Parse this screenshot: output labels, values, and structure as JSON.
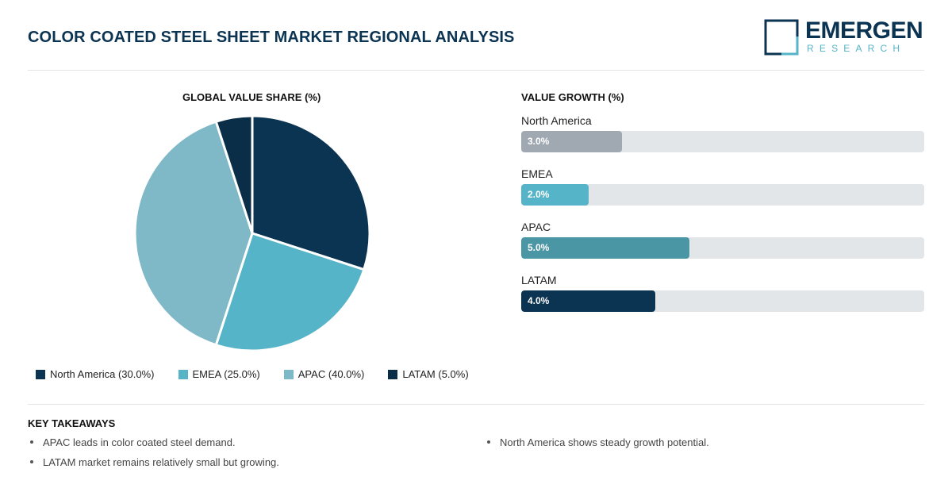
{
  "header": {
    "title": "COLOR COATED STEEL SHEET MARKET REGIONAL ANALYSIS",
    "logo_main": "EMERGEN",
    "logo_sub": "RESEARCH"
  },
  "chart_data": [
    {
      "type": "pie",
      "title": "GLOBAL VALUE SHARE (%)",
      "unit": "%",
      "categories": [
        "North America",
        "EMEA",
        "APAC",
        "LATAM"
      ],
      "values": [
        30.0,
        25.0,
        40.0,
        5.0
      ],
      "colors": [
        "#0b3352",
        "#56b4c8",
        "#7fb8c6",
        "#0a2e48"
      ],
      "legend": [
        {
          "label": "North America (30.0%)",
          "color": "#0b3352"
        },
        {
          "label": "EMEA (25.0%)",
          "color": "#56b4c8"
        },
        {
          "label": "APAC (40.0%)",
          "color": "#7fb8c6"
        },
        {
          "label": "LATAM (5.0%)",
          "color": "#0a2e48"
        }
      ],
      "legend_position": "bottom"
    },
    {
      "type": "bar",
      "orientation": "horizontal",
      "title": "VALUE GROWTH (%)",
      "categories": [
        "North America",
        "EMEA",
        "APAC",
        "LATAM"
      ],
      "values": [
        3.0,
        2.0,
        5.0,
        4.0
      ],
      "value_labels": [
        "3.0%",
        "2.0%",
        "5.0%",
        "4.0%"
      ],
      "colors": [
        "#a0a9b1",
        "#56b4c8",
        "#4b96a5",
        "#0b3352"
      ],
      "xlim": [
        0,
        12
      ]
    }
  ],
  "takeaways": {
    "title": "KEY TAKEAWAYS",
    "items": [
      "APAC leads in color coated steel demand.",
      "LATAM market remains relatively small but growing.",
      "North America shows steady growth potential."
    ]
  }
}
